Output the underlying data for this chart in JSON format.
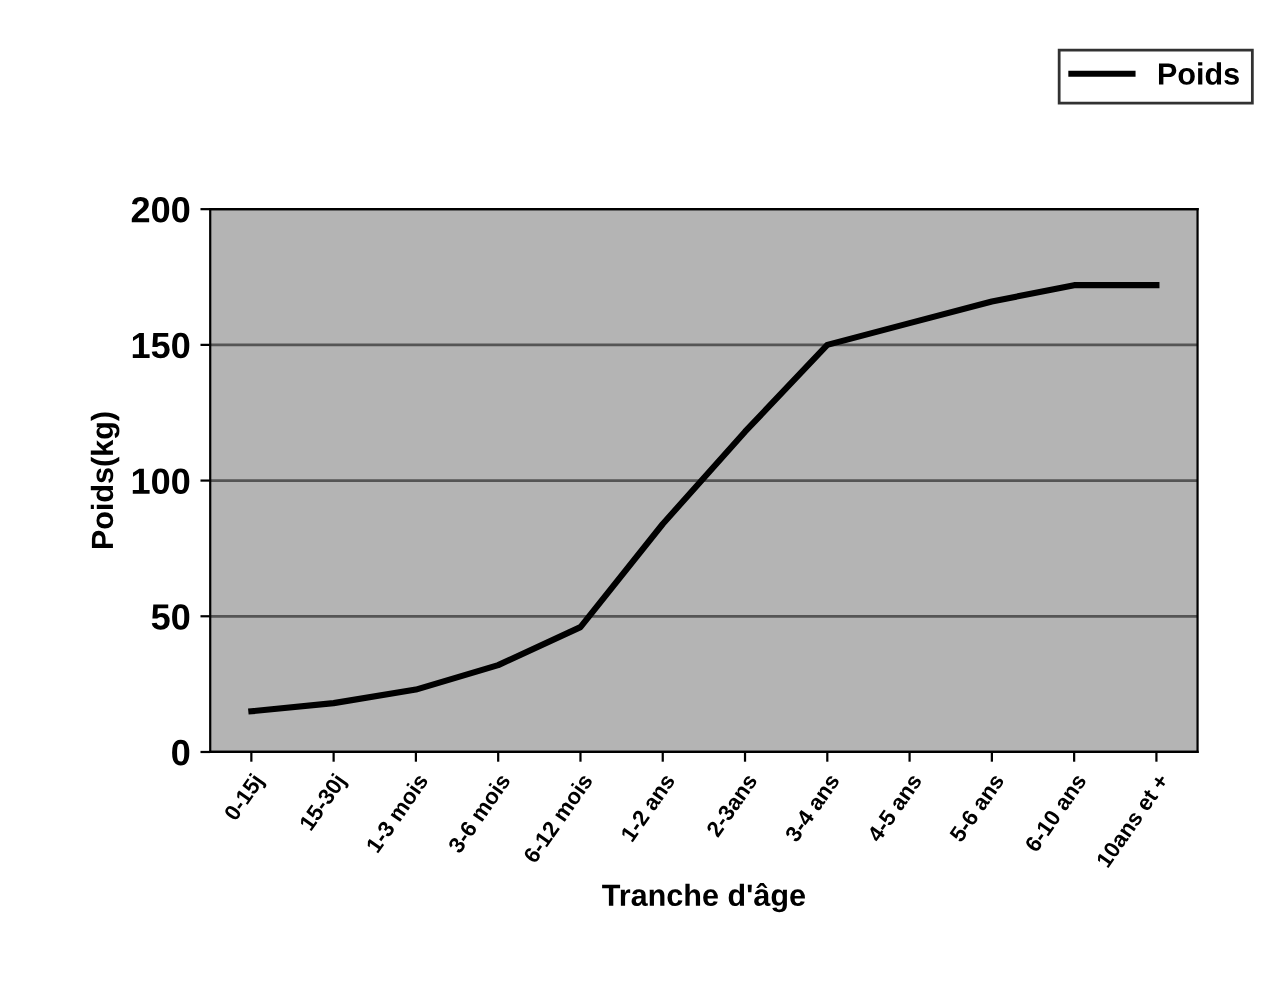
{
  "chart_data": {
    "type": "line",
    "xlabel": "Tranche d'âge",
    "ylabel": "Poids(kg)",
    "categories": [
      "0-15j",
      "15-30j",
      "1-3 mois",
      "3-6 mois",
      "6-12 mois",
      "1-2 ans",
      "2-3ans",
      "3-4 ans",
      "4-5 ans",
      "5-6 ans",
      "6-10 ans",
      "10ans et +"
    ],
    "series": [
      {
        "name": "Poids",
        "color": "#000000",
        "values": [
          15,
          18,
          23,
          32,
          46,
          84,
          118,
          150,
          158,
          166,
          172,
          172
        ]
      }
    ],
    "ylim": [
      0,
      200
    ],
    "yticks": [
      0,
      50,
      100,
      150,
      200
    ],
    "grid": "y",
    "legend": "top right",
    "marker": "none",
    "line_style": "solid"
  }
}
